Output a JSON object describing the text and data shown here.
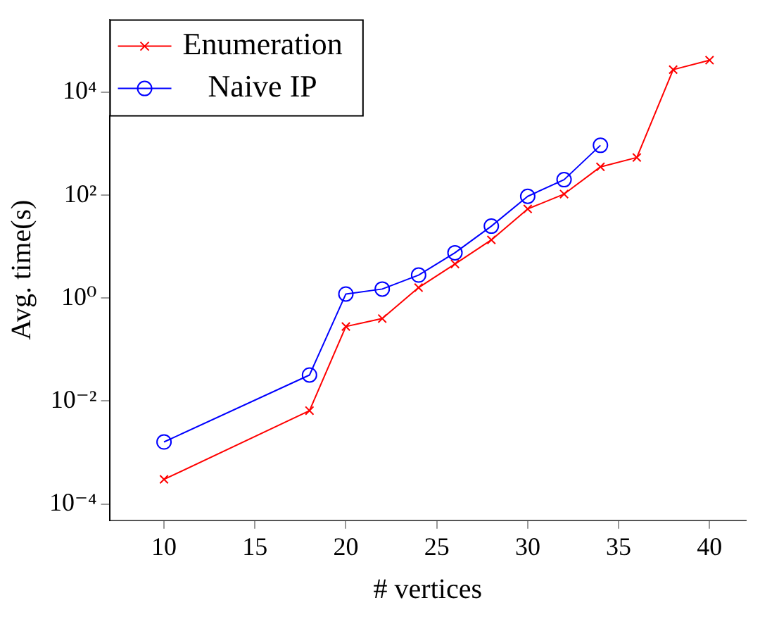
{
  "chart_data": {
    "type": "line",
    "xlabel": "# vertices",
    "ylabel": "Avg. time(s)",
    "log": "y",
    "grid": false,
    "legend": "top left",
    "xlim": [
      7,
      42
    ],
    "xticks": [
      10,
      15,
      20,
      25,
      30,
      35,
      40
    ],
    "ylim": [
      4.8e-05,
      260000
    ],
    "yticks": [
      {
        "value": 0.0001,
        "label": "10⁻⁴"
      },
      {
        "value": 0.01,
        "label": "10⁻²"
      },
      {
        "value": 1,
        "label": "10⁰"
      },
      {
        "value": 100,
        "label": "10²"
      },
      {
        "value": 10000,
        "label": "10⁴"
      }
    ],
    "series": [
      {
        "name": "Enumeration",
        "color": "#ff0000",
        "marker": "cross",
        "x": [
          10,
          18,
          20,
          22,
          24,
          26,
          28,
          30,
          32,
          34,
          36,
          38,
          40
        ],
        "values": [
          0.0003,
          0.0065,
          0.28,
          0.4,
          1.6,
          4.6,
          13.5,
          54,
          105,
          355,
          540,
          27500,
          42000
        ]
      },
      {
        "name": "Naive IP",
        "color": "#0000ff",
        "marker": "circle",
        "x": [
          10,
          18,
          20,
          22,
          24,
          26,
          28,
          30,
          32,
          34
        ],
        "values": [
          0.0016,
          0.032,
          1.2,
          1.5,
          2.8,
          7.6,
          25,
          95,
          200,
          930
        ]
      }
    ]
  }
}
